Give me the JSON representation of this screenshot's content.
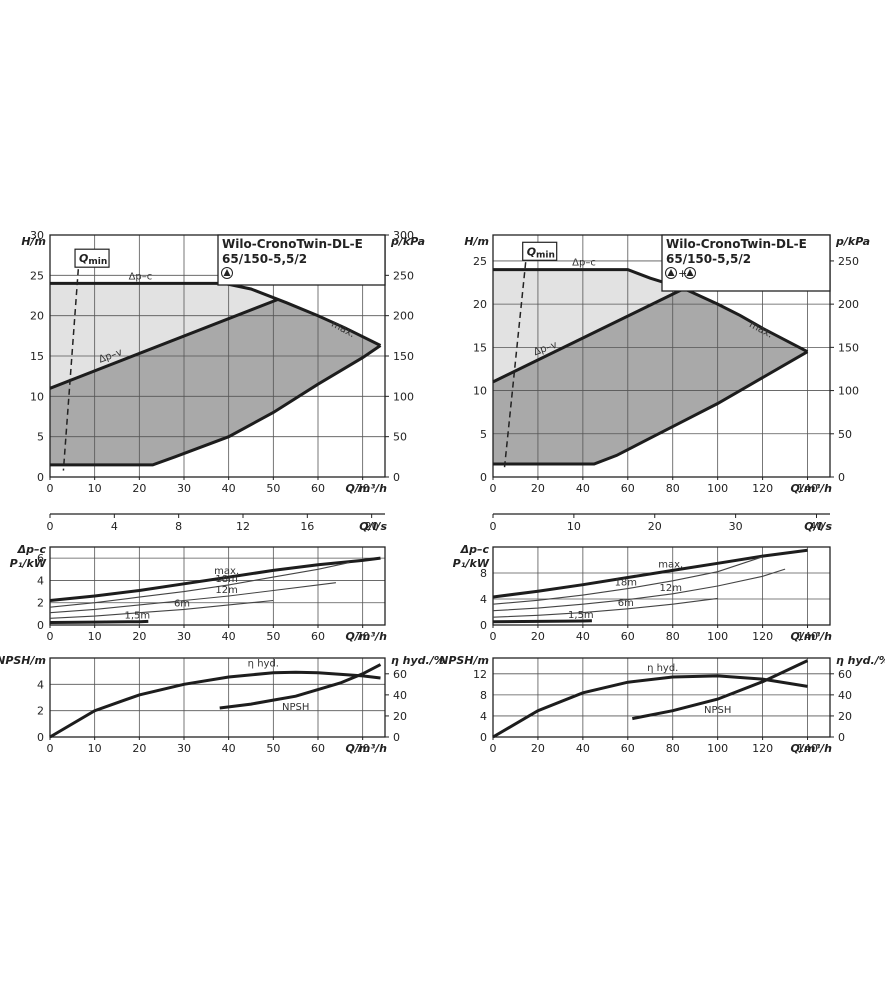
{
  "chart_data": [
    {
      "type": "area",
      "model": [
        "Wilo-CronoTwin-DL-E",
        "65/150-5,5/2"
      ],
      "pump_mode_icons": [
        "single-pump-icon"
      ],
      "pump_mode_text": "",
      "head": {
        "ylabel": "H/m",
        "ylabel2": "p/kPa",
        "xlabel": "Q/m³/h",
        "xlabel2": "Q/l/s",
        "xlim": [
          0,
          75
        ],
        "ylim": [
          0,
          30
        ],
        "xticks": [
          0,
          10,
          20,
          30,
          40,
          50,
          60,
          70
        ],
        "yticks": [
          0,
          5,
          10,
          15,
          20,
          25,
          30
        ],
        "y2ticks": [
          0,
          50,
          100,
          150,
          200,
          250,
          300
        ],
        "x2ticks": [
          0,
          4,
          8,
          12,
          16,
          20
        ],
        "x2_max": 20.83,
        "min_curve": {
          "x": [
            0,
            23,
            28,
            40,
            50,
            60,
            70,
            74
          ],
          "y": [
            1.5,
            1.5,
            2.5,
            5,
            8,
            11.5,
            14.8,
            16.3
          ]
        },
        "max_curve": {
          "x": [
            0,
            39,
            45,
            53,
            60,
            66,
            74
          ],
          "y": [
            24,
            24,
            23.3,
            21.6,
            20,
            18.5,
            16.3
          ]
        },
        "dp_v": {
          "x": [
            0,
            51
          ],
          "y": [
            11,
            22
          ]
        },
        "qmin": {
          "x": [
            6.5,
            3
          ],
          "y": [
            27,
            0.8
          ],
          "label": "Qmin"
        },
        "labels": {
          "dp_c": "Δp–c",
          "dp_v": "Δp–v",
          "max": "max."
        }
      },
      "power": {
        "ylabel": "Δp–c",
        "ylabel2": "P₁/kW",
        "xlabel": "Q/m³/h",
        "xlim": [
          0,
          75
        ],
        "ylim": [
          0,
          7
        ],
        "xticks": [
          0,
          10,
          20,
          30,
          40,
          50,
          60,
          70
        ],
        "yticks": [
          0,
          2,
          4,
          6
        ],
        "series": [
          {
            "name": "max.",
            "x": [
              0,
              10,
              20,
              30,
              40,
              50,
              60,
              70,
              74
            ],
            "y": [
              2.2,
              2.6,
              3.1,
              3.7,
              4.3,
              4.9,
              5.4,
              5.8,
              6.0
            ],
            "thick": true
          },
          {
            "name": "18m",
            "x": [
              0,
              10,
              20,
              30,
              40,
              50,
              60,
              67
            ],
            "y": [
              1.6,
              2.0,
              2.5,
              3.0,
              3.6,
              4.3,
              5.0,
              5.6
            ],
            "thick": false
          },
          {
            "name": "12m",
            "x": [
              0,
              10,
              20,
              30,
              40,
              50,
              60,
              64
            ],
            "y": [
              1.1,
              1.4,
              1.8,
              2.2,
              2.6,
              3.1,
              3.6,
              3.8
            ],
            "thick": false
          },
          {
            "name": "6m",
            "x": [
              0,
              10,
              20,
              30,
              40,
              50
            ],
            "y": [
              0.6,
              0.8,
              1.1,
              1.4,
              1.8,
              2.2
            ],
            "thick": false
          },
          {
            "name": "1,5m",
            "x": [
              0,
              10,
              20,
              22
            ],
            "y": [
              0.22,
              0.26,
              0.3,
              0.32
            ],
            "thick": true
          }
        ]
      },
      "npsh": {
        "ylabel": "NPSH/m",
        "ylabel2": "η hyd./%",
        "xlabel": "Q/m³/h",
        "xlim": [
          0,
          75
        ],
        "ylim": [
          0,
          6
        ],
        "xticks": [
          0,
          10,
          20,
          30,
          40,
          50,
          60,
          70
        ],
        "yticks": [
          0,
          2,
          4
        ],
        "y2ticks": [
          0,
          20,
          40,
          60
        ],
        "y2_max": 75,
        "eta": {
          "name": "η hyd.",
          "x": [
            0,
            10,
            20,
            30,
            40,
            50,
            55,
            60,
            70,
            74
          ],
          "y": [
            0,
            25,
            40,
            50,
            57,
            61,
            61.5,
            61,
            58,
            56
          ]
        },
        "npsh_curve": {
          "name": "NPSH",
          "x": [
            38,
            45,
            50,
            55,
            60,
            65,
            70,
            74
          ],
          "y": [
            2.2,
            2.5,
            2.8,
            3.1,
            3.6,
            4.1,
            4.8,
            5.5
          ]
        }
      }
    },
    {
      "type": "area",
      "model": [
        "Wilo-CronoTwin-DL-E",
        "65/150-5,5/2"
      ],
      "pump_mode_icons": [
        "pump-icon",
        "pump-icon"
      ],
      "pump_mode_text": "+",
      "head": {
        "ylabel": "H/m",
        "ylabel2": "p/kPa",
        "xlabel": "Q/m³/h",
        "xlabel2": "Q/l/s",
        "xlim": [
          0,
          150
        ],
        "ylim": [
          0,
          28
        ],
        "xticks": [
          0,
          20,
          40,
          60,
          80,
          100,
          120,
          140
        ],
        "yticks": [
          0,
          5,
          10,
          15,
          20,
          25
        ],
        "y2ticks": [
          0,
          50,
          100,
          150,
          200,
          250
        ],
        "x2ticks": [
          0,
          10,
          20,
          30,
          40
        ],
        "x2_max": 41.67,
        "min_curve": {
          "x": [
            0,
            45,
            55,
            70,
            85,
            100,
            120,
            140
          ],
          "y": [
            1.5,
            1.5,
            2.5,
            4.5,
            6.5,
            8.5,
            11.5,
            14.5
          ]
        },
        "max_curve": {
          "x": [
            0,
            60,
            70,
            85,
            100,
            110,
            120,
            140
          ],
          "y": [
            24,
            24,
            23,
            21.8,
            20,
            18.7,
            17.2,
            14.5
          ]
        },
        "dp_v": {
          "x": [
            0,
            85
          ],
          "y": [
            11,
            21.8
          ]
        },
        "qmin": {
          "x": [
            15,
            5
          ],
          "y": [
            26,
            0.8
          ],
          "label": "Qmin"
        },
        "labels": {
          "dp_c": "Δp–c",
          "dp_v": "Δp–v",
          "max": "max."
        }
      },
      "power": {
        "ylabel": "Δp–c",
        "ylabel2": "P₁/kW",
        "xlabel": "Q/m³/h",
        "xlim": [
          0,
          150
        ],
        "ylim": [
          0,
          12
        ],
        "xticks": [
          0,
          20,
          40,
          60,
          80,
          100,
          120,
          140
        ],
        "yticks": [
          0,
          4,
          8
        ],
        "series": [
          {
            "name": "max.",
            "x": [
              0,
              20,
              40,
              60,
              80,
              100,
              120,
              140
            ],
            "y": [
              4.3,
              5.2,
              6.2,
              7.3,
              8.4,
              9.5,
              10.6,
              11.5
            ],
            "thick": true
          },
          {
            "name": "18m",
            "x": [
              0,
              20,
              40,
              60,
              80,
              100,
              120
            ],
            "y": [
              3.2,
              3.8,
              4.6,
              5.6,
              6.8,
              8.2,
              10.5
            ],
            "thick": false
          },
          {
            "name": "12m",
            "x": [
              0,
              20,
              40,
              60,
              80,
              100,
              120,
              130
            ],
            "y": [
              2.2,
              2.6,
              3.2,
              3.9,
              4.8,
              6.0,
              7.5,
              8.6
            ],
            "thick": false
          },
          {
            "name": "6m",
            "x": [
              0,
              20,
              40,
              60,
              80,
              100
            ],
            "y": [
              1.2,
              1.5,
              1.9,
              2.5,
              3.2,
              4.1
            ],
            "thick": false
          },
          {
            "name": "1,5m",
            "x": [
              0,
              20,
              40,
              44
            ],
            "y": [
              0.5,
              0.55,
              0.62,
              0.65
            ],
            "thick": true
          }
        ]
      },
      "npsh": {
        "ylabel": "NPSH/m",
        "ylabel2": "η hyd./%",
        "xlabel": "Q/m³/h",
        "xlim": [
          0,
          150
        ],
        "ylim": [
          0,
          15
        ],
        "xticks": [
          0,
          20,
          40,
          60,
          80,
          100,
          120,
          140
        ],
        "yticks": [
          0,
          4,
          8,
          12
        ],
        "y2ticks": [
          0,
          20,
          40,
          60
        ],
        "y2_max": 75,
        "eta": {
          "name": "η hyd.",
          "x": [
            0,
            20,
            40,
            60,
            80,
            100,
            120,
            140
          ],
          "y": [
            0,
            25,
            42,
            52,
            57,
            58,
            55,
            48
          ]
        },
        "npsh_curve": {
          "name": "NPSH",
          "x": [
            62,
            80,
            100,
            120,
            140
          ],
          "y": [
            3.5,
            5.0,
            7.2,
            10.5,
            14.5
          ]
        }
      }
    }
  ]
}
